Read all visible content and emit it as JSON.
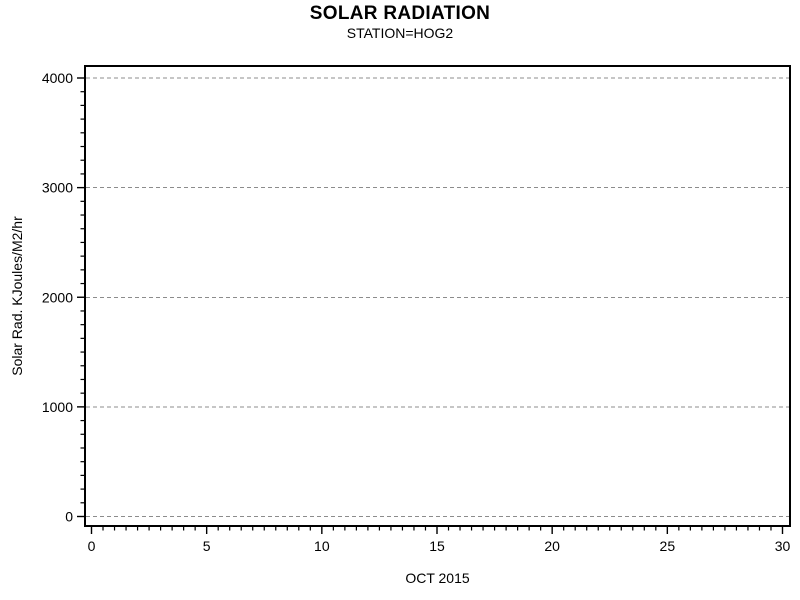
{
  "page": {
    "background": "#ffffff"
  },
  "chart_data": {
    "type": "line",
    "title": "SOLAR RADIATION",
    "subtitle": "STATION=HOG2",
    "xlabel": "OCT 2015",
    "ylabel": "Solar Rad. KJoules/M2/hr",
    "xlim": [
      0,
      30
    ],
    "ylim": [
      0,
      4000
    ],
    "xticks": [
      0,
      5,
      10,
      15,
      20,
      25,
      30
    ],
    "yticks": [
      0,
      1000,
      2000,
      3000,
      4000
    ],
    "xtick_labels": [
      "0",
      "5",
      "10",
      "15",
      "20",
      "25",
      "30"
    ],
    "ytick_labels": [
      "0",
      "1000",
      "2000",
      "3000",
      "4000"
    ],
    "x_minor_ticks_between_major": 9,
    "y_minor_ticks_between_major": 7,
    "grid": "horizontal dashed gridlines at each y major tick",
    "legend": "none",
    "series": [],
    "colors": {
      "text": "#000000",
      "frame": "#000000",
      "tick": "#000000",
      "gridline": "#8c8c8c",
      "background": "#ffffff"
    }
  }
}
